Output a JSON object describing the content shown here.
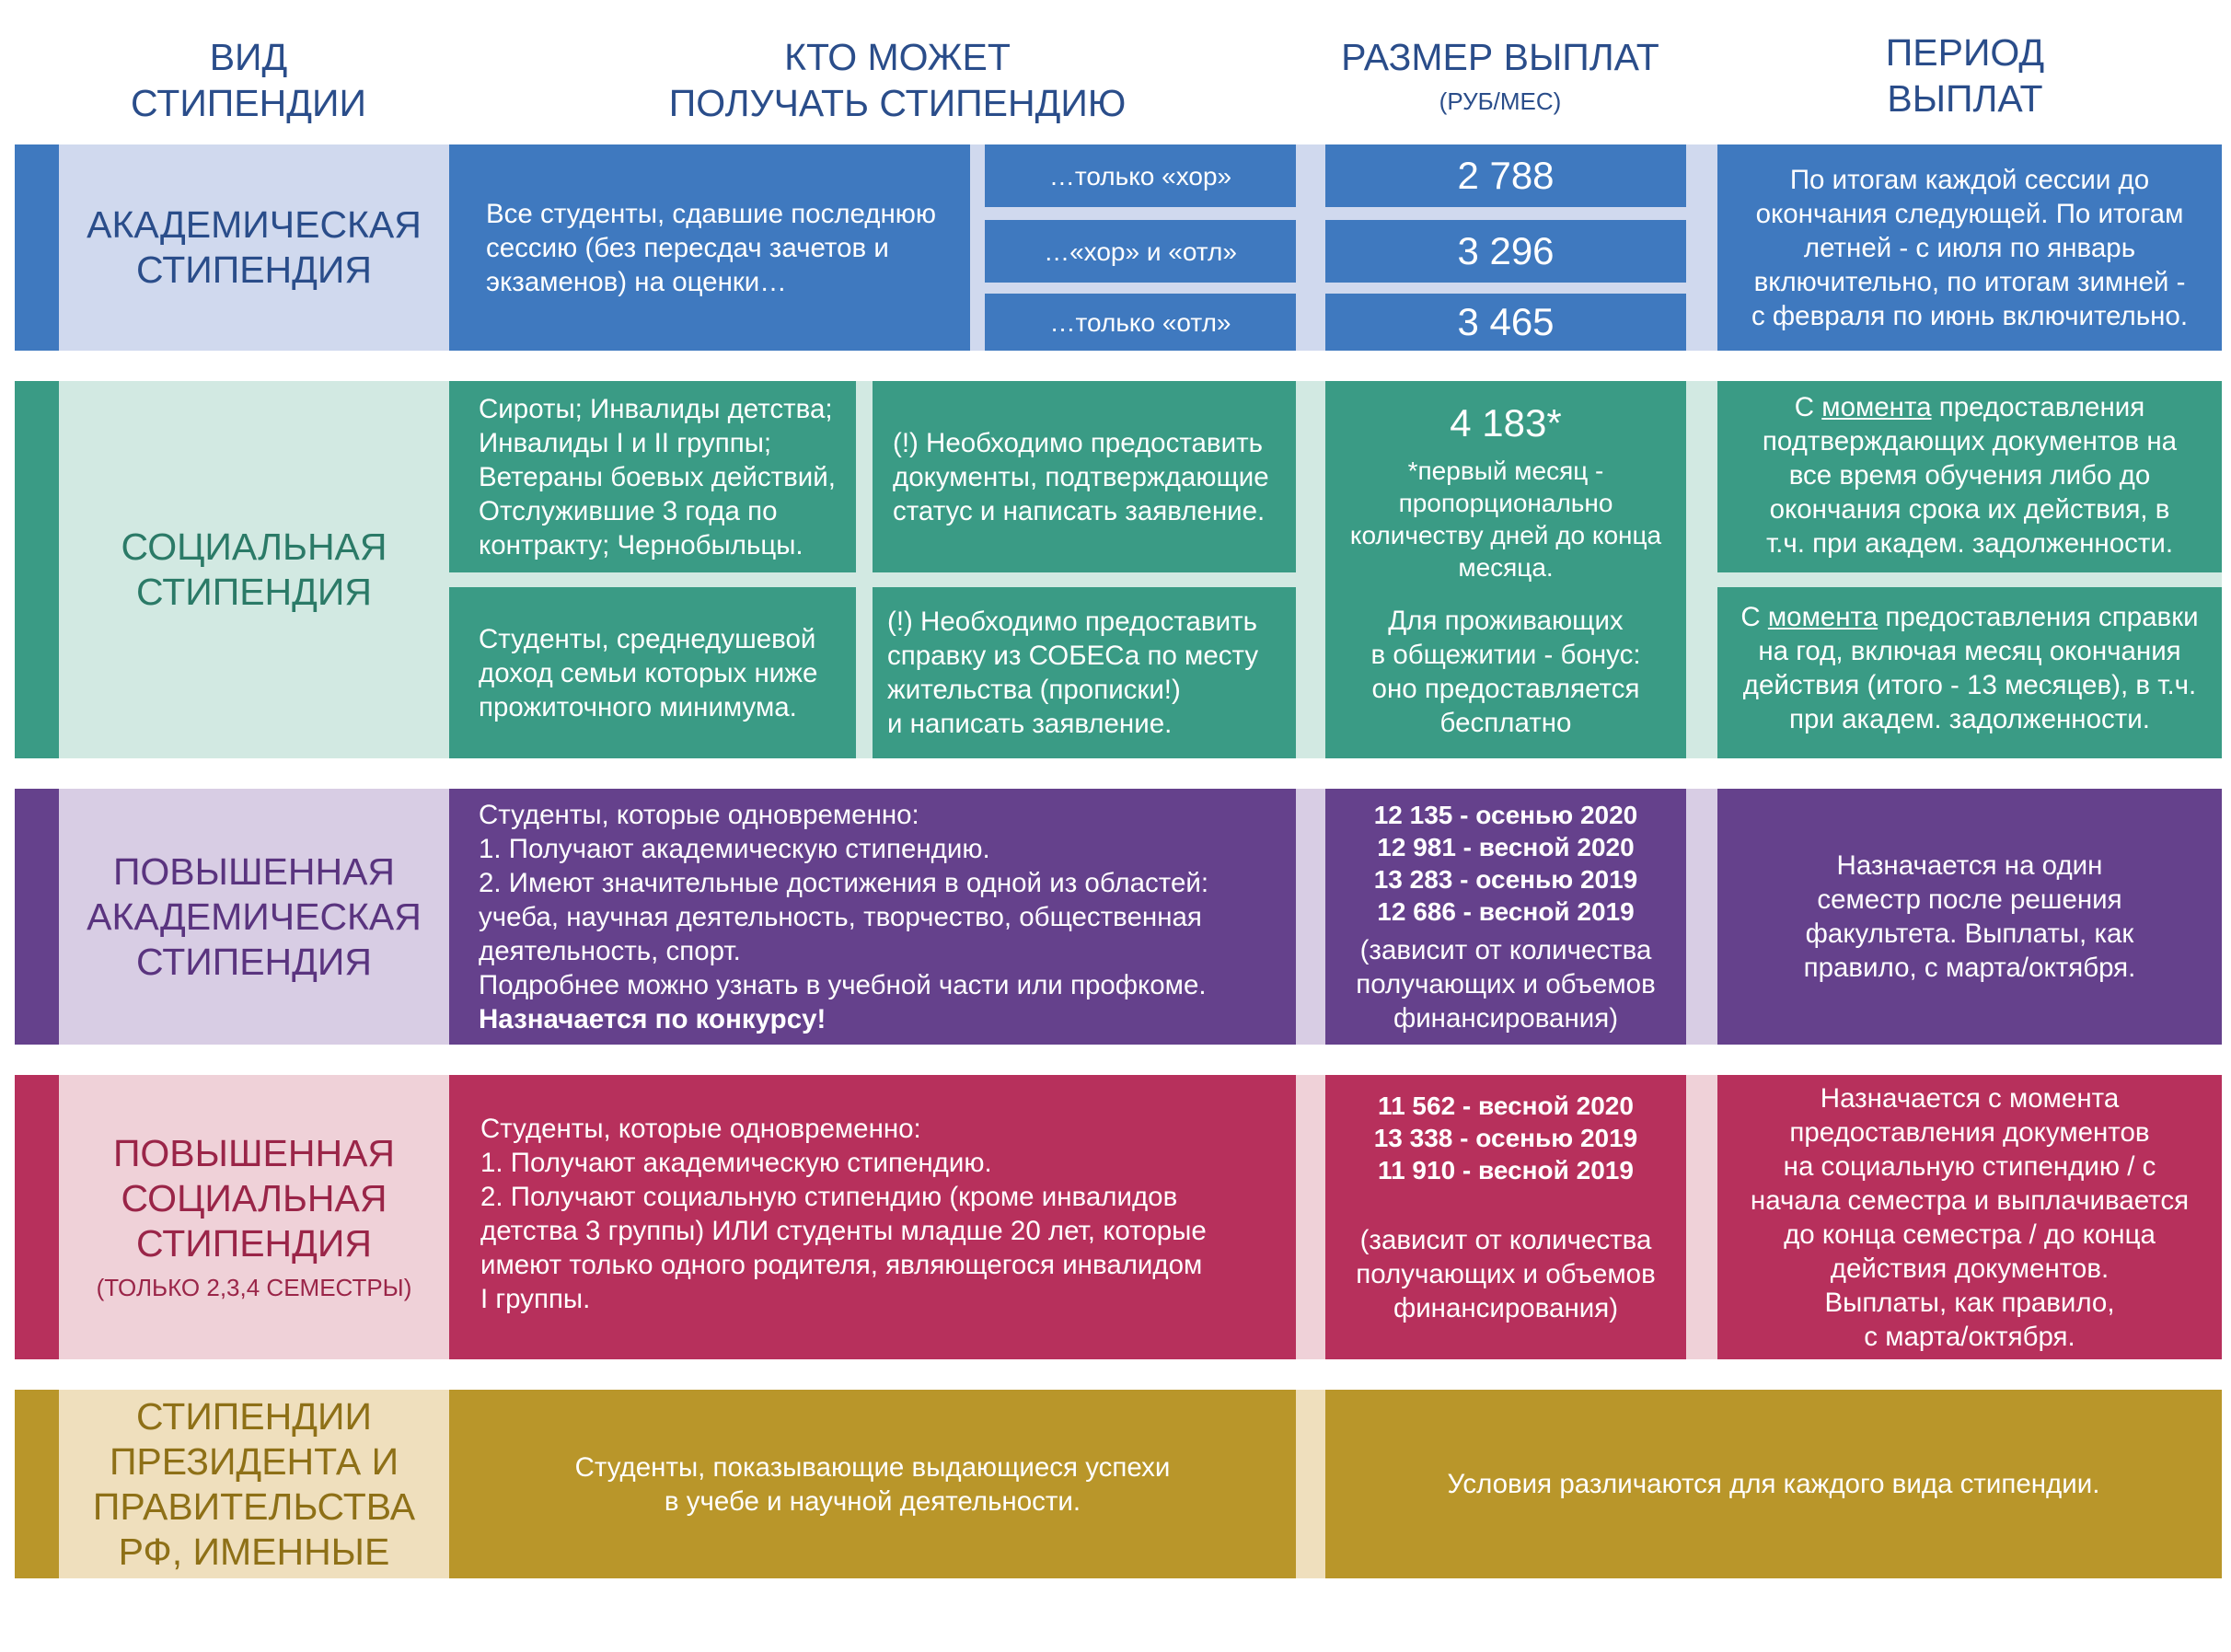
{
  "headers": {
    "type": "ВИД\nСТИПЕНДИИ",
    "who": "КТО МОЖЕТ\nПОЛУЧАТЬ СТИПЕНДИЮ",
    "amount": "РАЗМЕР ВЫПЛАТ",
    "amount_unit": "(РУБ/МЕС)",
    "period": "ПЕРИОД\nВЫПЛАТ"
  },
  "colors": {
    "academic": "#3f79bf",
    "academic_light": "#d0d9ee",
    "academic_text": "#2a4d8a",
    "social": "#3a9b85",
    "social_light": "#d2e9e2",
    "social_text": "#2b7a67",
    "inc_academic": "#65418c",
    "inc_academic_light": "#d8cde4",
    "inc_academic_text": "#5a347f",
    "inc_social": "#b7305c",
    "inc_social_light": "#efd1d8",
    "inc_social_text": "#9a2548",
    "president": "#b9962a",
    "president_light": "#efdfbd",
    "president_text": "#8e7017"
  },
  "academic": {
    "name": "АКАДЕМИЧЕСКАЯ\nСТИПЕНДИЯ",
    "who": "Все студенты, сдавшие последнюю\nсессию (без пересдач зачетов и\nэкзаменов) на оценки…",
    "grades": [
      "…только «хор»",
      "…«хор» и «отл»",
      "…только «отл»"
    ],
    "amounts": [
      "2 788",
      "3 296",
      "3 465"
    ],
    "period": "По итогам каждой сессии до\nокончания следующей. По итогам\nлетней - с июля по январь\nвключительно, по итогам зимней -\nс февраля по июнь включительно."
  },
  "social": {
    "name": "СОЦИАЛЬНАЯ\nСТИПЕНДИЯ",
    "who1": "Сироты; Инвалиды детства;\nИнвалиды I и II группы;\nВетераны боевых действий,\nОтслужившие 3 года по\nконтракту; Чернобыльцы.",
    "req1": "(!) Необходимо предоставить\nдокументы, подтверждающие\nстатус и написать заявление.",
    "who2": "Студенты, среднедушевой\nдоход семьи которых ниже\nпрожиточного минимума.",
    "req2": "(!) Необходимо предоставить\nсправку из СОБЕСа по месту\nжительства (прописки!)\nи написать заявление.",
    "amount": "4 183*",
    "amount_note": "*первый месяц -\nпропорционально\nколичеству дней до конца\nмесяца.",
    "bonus": "Для проживающих\nв общежитии - бонус:\nоно предоставляется\nбесплатно",
    "period1_a": "С ",
    "period1_link": "момента",
    "period1_b": " предоставления\nподтверждающих документов на\nвсе время обучения либо до\nокончания срока их действия, в\nт.ч. при академ. задолженности.",
    "period2_a": "С ",
    "period2_link": "момента",
    "period2_b": " предоставления справки\nна год, включая месяц окончания\nдействия (итого - 13 месяцев), в т.ч.\nпри академ. задолженности."
  },
  "inc_academic": {
    "name": "ПОВЫШЕННАЯ\nАКАДЕМИЧЕСКАЯ\nСТИПЕНДИЯ",
    "who": "Студенты, которые одновременно:\n1. Получают академическую стипендию.\n2. Имеют значительные достижения в одной из областей:\nучеба, научная деятельность, творчество, общественная\nдеятельность, спорт.\nПодробнее можно узнать в учебной части или профкоме.",
    "who_bold": "Назначается по конкурсу!",
    "amounts": [
      "12 135 - осенью 2020",
      "12 981 - весной 2020",
      "13 283 - осенью 2019",
      "12 686 - весной 2019"
    ],
    "amount_note": "(зависит от количества\nполучающих и объемов\nфинансирования)",
    "period": "Назначается  на один\nсеместр после решения\nфакультета. Выплаты, как\nправило, с марта/октября."
  },
  "inc_social": {
    "name": "ПОВЫШЕННАЯ\nСОЦИАЛЬНАЯ\nСТИПЕНДИЯ",
    "name_sub": "(ТОЛЬКО 2,3,4 СЕМЕСТРЫ)",
    "who": "Студенты, которые одновременно:\n1. Получают академическую стипендию.\n2. Получают социальную стипендию (кроме инвалидов\nдетства 3 группы) ИЛИ студенты младше 20 лет, которые\nимеют только одного родителя, являющегося инвалидом\nI группы.",
    "amounts": [
      "11 562 - весной 2020",
      "13 338 - осенью 2019",
      "11 910 - весной 2019"
    ],
    "amount_note": "(зависит от количества\nполучающих и объемов\nфинансирования)",
    "period": "Назначается с момента\nпредоставления документов\nна социальную стипендию / с\nначала семестра и выплачивается\nдо конца семестра / до конца\nдействия документов.\nВыплаты, как правило,\nс марта/октября."
  },
  "president": {
    "name": "СТИПЕНДИИ\nПРЕЗИДЕНТА  И\nПРАВИТЕЛЬСТВА\nРФ, ИМЕННЫЕ",
    "who": "Студенты, показывающие выдающиеся успехи\nв учебе и научной деятельности.",
    "conditions": "Условия различаются для каждого вида стипендии."
  }
}
